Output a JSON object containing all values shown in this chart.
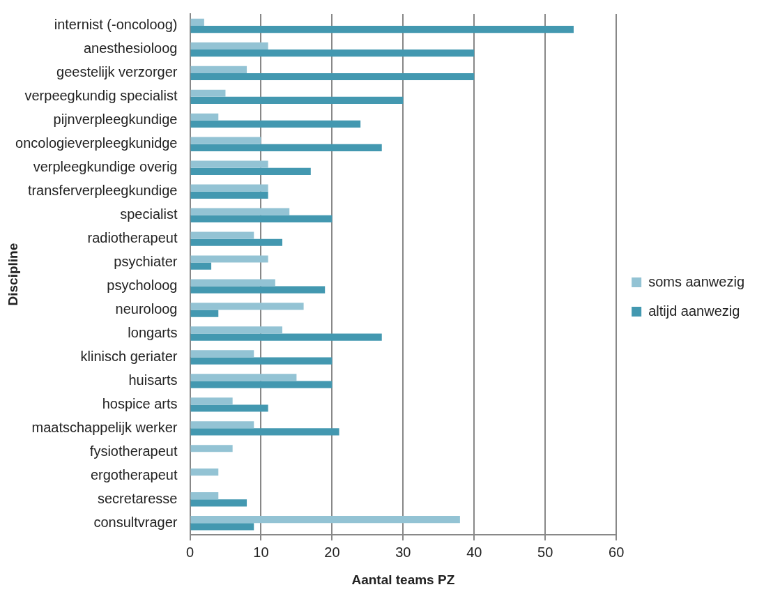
{
  "chart_data": {
    "type": "bar",
    "orientation": "horizontal",
    "xlabel": "Aantal teams PZ",
    "ylabel": "Discipline",
    "categories": [
      "internist (-oncoloog)",
      "anesthesioloog",
      "geestelijk verzorger",
      "verpeegkundig specialist",
      "pijnverpleegkundige",
      "oncologieverpleegkunidge",
      "verpleegkundige overig",
      "transferverpleegkundige",
      "specialist",
      "radiotherapeut",
      "psychiater",
      "psycholoog",
      "neuroloog",
      "longarts",
      "klinisch geriater",
      "huisarts",
      "hospice arts",
      "maatschappelijk werker",
      "fysiotherapeut",
      "ergotherapeut",
      "secretaresse",
      "consultvrager"
    ],
    "series": [
      {
        "name": "soms aanwezig",
        "color": "#93c3d4",
        "values": [
          2,
          11,
          8,
          5,
          4,
          10,
          11,
          11,
          14,
          9,
          11,
          12,
          16,
          13,
          9,
          15,
          6,
          9,
          6,
          4,
          4,
          38
        ]
      },
      {
        "name": "altijd aanwezig",
        "color": "#4398b0",
        "values": [
          54,
          40,
          40,
          30,
          24,
          27,
          17,
          11,
          20,
          13,
          3,
          19,
          4,
          27,
          20,
          20,
          11,
          21,
          0,
          0,
          8,
          9
        ]
      }
    ],
    "xlim": [
      0,
      60
    ],
    "xticks": [
      0,
      10,
      20,
      30,
      40,
      50,
      60
    ],
    "grid": "x",
    "legend": "right"
  }
}
